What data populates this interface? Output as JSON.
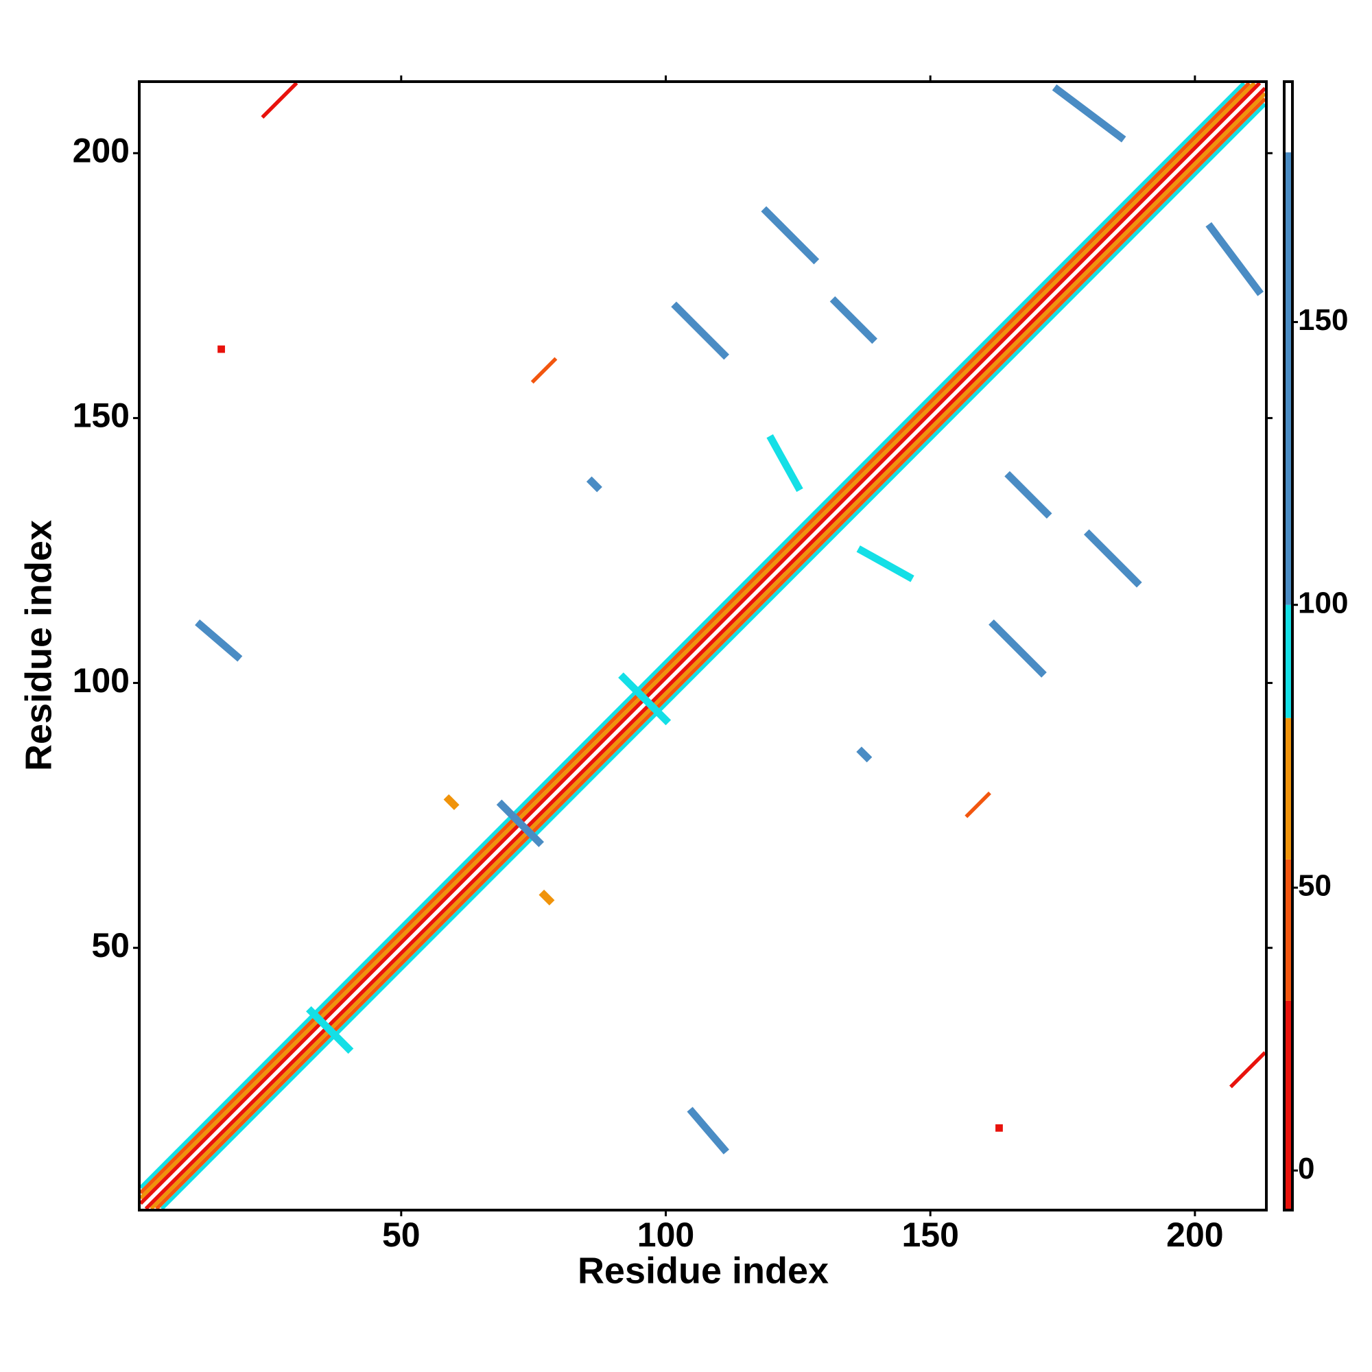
{
  "chart_data": {
    "type": "contact-map",
    "xlabel": "Residue index",
    "ylabel": "Residue index",
    "xlim": [
      0.5,
      213.5
    ],
    "ylim": [
      0.5,
      213.5
    ],
    "xticks": [
      50,
      100,
      150,
      200
    ],
    "yticks": [
      50,
      100,
      150,
      200
    ],
    "colorbar": {
      "bins": [
        -7,
        30,
        55,
        80,
        100,
        180,
        192.5
      ],
      "colors": [
        "#e8120c",
        "#f2560f",
        "#f0930a",
        "#14dfe6",
        "#4a8cc4",
        "#ffffff"
      ],
      "ticks": [
        0,
        50,
        100,
        150
      ]
    },
    "stripes": [
      {
        "x": [
          1,
          209
        ],
        "y": [
          5,
          213
        ],
        "value": 90
      },
      {
        "x": [
          5,
          213
        ],
        "y": [
          1,
          209
        ],
        "value": 90
      },
      {
        "x": [
          1,
          210
        ],
        "y": [
          4,
          213
        ],
        "value": 40
      },
      {
        "x": [
          4,
          213
        ],
        "y": [
          1,
          210
        ],
        "value": 40
      },
      {
        "x": [
          1,
          211
        ],
        "y": [
          3,
          213
        ],
        "value": 65
      },
      {
        "x": [
          3,
          213
        ],
        "y": [
          1,
          211
        ],
        "value": 65
      },
      {
        "x": [
          1,
          212
        ],
        "y": [
          2,
          213
        ],
        "value": 10
      },
      {
        "x": [
          2,
          213
        ],
        "y": [
          1,
          212
        ],
        "value": 10
      },
      {
        "x": [
          12,
          19
        ],
        "y": [
          111,
          105
        ],
        "value": 130
      },
      {
        "x": [
          105,
          111
        ],
        "y": [
          19,
          12
        ],
        "value": 130
      },
      {
        "x": [
          102,
          111
        ],
        "y": [
          171,
          162
        ],
        "value": 130
      },
      {
        "x": [
          162,
          171
        ],
        "y": [
          111,
          102
        ],
        "value": 130
      },
      {
        "x": [
          119,
          128
        ],
        "y": [
          189,
          180
        ],
        "value": 130
      },
      {
        "x": [
          180,
          189
        ],
        "y": [
          128,
          119
        ],
        "value": 130
      },
      {
        "x": [
          132,
          139
        ],
        "y": [
          172,
          165
        ],
        "value": 130
      },
      {
        "x": [
          165,
          172
        ],
        "y": [
          139,
          132
        ],
        "value": 130
      },
      {
        "x": [
          174,
          186
        ],
        "y": [
          212,
          203
        ],
        "value": 130
      },
      {
        "x": [
          203,
          212
        ],
        "y": [
          186,
          174
        ],
        "value": 130
      },
      {
        "x": [
          120,
          125
        ],
        "y": [
          146,
          137
        ],
        "value": 95
      },
      {
        "x": [
          137,
          146
        ],
        "y": [
          125,
          120
        ],
        "value": 95
      },
      {
        "x": [
          24,
          30
        ],
        "y": [
          207,
          213
        ],
        "value": 15
      },
      {
        "x": [
          207,
          213
        ],
        "y": [
          24,
          30
        ],
        "value": 15
      },
      {
        "x": [
          75,
          79
        ],
        "y": [
          157,
          161
        ],
        "value": 45
      },
      {
        "x": [
          157,
          161
        ],
        "y": [
          75,
          79
        ],
        "value": 45
      },
      {
        "x": [
          86,
          87
        ],
        "y": [
          138,
          137
        ],
        "value": 130
      },
      {
        "x": [
          137,
          138
        ],
        "y": [
          87,
          86
        ],
        "value": 130
      },
      {
        "x": [
          77,
          78
        ],
        "y": [
          60,
          59
        ],
        "value": 60
      },
      {
        "x": [
          59,
          60
        ],
        "y": [
          78,
          77
        ],
        "value": 60
      },
      {
        "x": [
          16,
          16
        ],
        "y": [
          163,
          163
        ],
        "value": 10
      },
      {
        "x": [
          163,
          163
        ],
        "y": [
          16,
          16
        ],
        "value": 10
      },
      {
        "x": [
          33,
          40
        ],
        "y": [
          38,
          31
        ],
        "value": 95
      },
      {
        "x": [
          92,
          100
        ],
        "y": [
          101,
          93
        ],
        "value": 95
      },
      {
        "x": [
          69,
          76
        ],
        "y": [
          77,
          70
        ],
        "value": 130
      }
    ]
  }
}
